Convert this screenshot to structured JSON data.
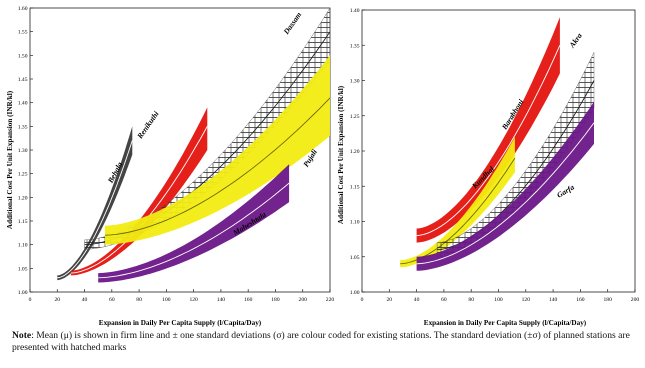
{
  "chart_data": [
    {
      "type": "line",
      "ylabel": "Additional Cost Per Unit Expansion (INR/kl)",
      "xlabel": "Expansion in Daily Per Capita Supply (l/Capita/Day)",
      "xlim": [
        0,
        220
      ],
      "ylim": [
        1.0,
        1.6
      ],
      "xticks": [
        "0",
        "20",
        "40",
        "60",
        "80",
        "100",
        "120",
        "140",
        "160",
        "180",
        "200",
        "220"
      ],
      "yticks": [
        "1.00",
        "1.05",
        "1.10",
        "1.15",
        "1.20",
        "1.25",
        "1.30",
        "1.35",
        "1.40",
        "1.45",
        "1.50",
        "1.55",
        "1.60"
      ],
      "grid": false,
      "legend": "labels on curves",
      "series": [
        {
          "name": "Behala",
          "color": "#3a3a3a",
          "style": "band",
          "x": [
            20,
            75
          ],
          "mean": [
            1.03,
            1.32
          ],
          "sd_lower": [
            1.025,
            1.29
          ],
          "sd_upper": [
            1.035,
            1.35
          ]
        },
        {
          "name": "Renikuthi",
          "color": "#e4140f",
          "style": "band",
          "x": [
            30,
            130
          ],
          "mean": [
            1.04,
            1.35
          ],
          "sd_lower": [
            1.035,
            1.3
          ],
          "sd_upper": [
            1.045,
            1.39
          ]
        },
        {
          "name": "Dassam",
          "color": "#333333",
          "style": "hatched",
          "x": [
            40,
            220
          ],
          "mean": [
            1.1,
            1.55
          ],
          "sd_lower": [
            1.09,
            1.49
          ],
          "sd_upper": [
            1.11,
            1.6
          ]
        },
        {
          "name": "Pujali",
          "color": "#f3ec12",
          "style": "band",
          "x": [
            55,
            220
          ],
          "mean": [
            1.12,
            1.41
          ],
          "sd_lower": [
            1.1,
            1.33
          ],
          "sd_upper": [
            1.14,
            1.5
          ]
        },
        {
          "name": "Maheshtala",
          "color": "#6a1787",
          "style": "band",
          "x": [
            50,
            190
          ],
          "mean": [
            1.03,
            1.23
          ],
          "sd_lower": [
            1.02,
            1.19
          ],
          "sd_upper": [
            1.04,
            1.27
          ]
        }
      ]
    },
    {
      "type": "line",
      "ylabel": "Additional Cost Per Unit Expansion (INR/kl)",
      "xlabel": "Expansion in Daily Per Capita Supply (l/Capita/Day)",
      "xlim": [
        0,
        200
      ],
      "ylim": [
        1.0,
        1.4
      ],
      "xticks": [
        "0",
        "20",
        "40",
        "60",
        "80",
        "100",
        "120",
        "140",
        "160",
        "180",
        "200"
      ],
      "yticks": [
        "1.00",
        "1.05",
        "1.10",
        "1.15",
        "1.20",
        "1.25",
        "1.30",
        "1.35",
        "1.40"
      ],
      "grid": false,
      "legend": "labels on curves",
      "series": [
        {
          "name": "Barabhoni",
          "color": "#e4140f",
          "style": "band",
          "x": [
            40,
            145
          ],
          "mean": [
            1.08,
            1.35
          ],
          "sd_lower": [
            1.07,
            1.31
          ],
          "sd_upper": [
            1.09,
            1.39
          ]
        },
        {
          "name": "Kundhal",
          "color": "#f3ec12",
          "style": "band",
          "x": [
            28,
            112
          ],
          "mean": [
            1.04,
            1.19
          ],
          "sd_lower": [
            1.035,
            1.17
          ],
          "sd_upper": [
            1.045,
            1.22
          ]
        },
        {
          "name": "Akra",
          "color": "#333333",
          "style": "hatched",
          "x": [
            55,
            170
          ],
          "mean": [
            1.06,
            1.3
          ],
          "sd_lower": [
            1.05,
            1.26
          ],
          "sd_upper": [
            1.07,
            1.34
          ]
        },
        {
          "name": "Garfa",
          "color": "#6a1787",
          "style": "band",
          "x": [
            40,
            170
          ],
          "mean": [
            1.04,
            1.24
          ],
          "sd_lower": [
            1.03,
            1.21
          ],
          "sd_upper": [
            1.05,
            1.27
          ]
        }
      ]
    }
  ],
  "note": {
    "label": "Note",
    "text": ": Mean (μ) is shown in firm line and ± one standard deviations (σ) are colour coded for existing stations. The standard deviation (±σ) of planned stations are presented with hatched marks"
  }
}
